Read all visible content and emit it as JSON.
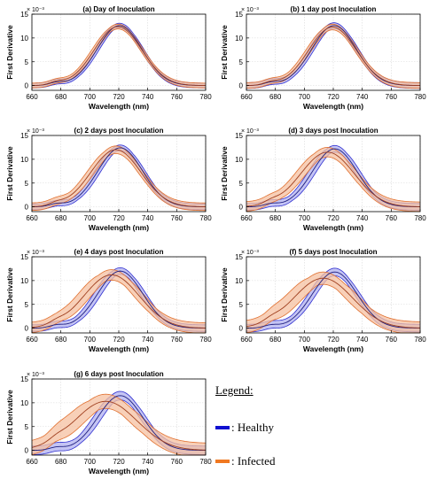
{
  "figure": {
    "legend_title": "Legend:",
    "legend_items": [
      {
        "label": ": Healthy",
        "color": "#1010d0"
      },
      {
        "label": ": Infected",
        "color": "#f07820"
      }
    ]
  },
  "chart_data": [
    {
      "type": "area",
      "title": "(a) Day of Inoculation",
      "xlabel": "Wavelength (nm)",
      "ylabel": "First Derivative",
      "exponent_label": "× 10⁻³",
      "xlim": [
        660,
        780
      ],
      "ylim": [
        -1,
        15
      ],
      "xticks": [
        660,
        680,
        700,
        720,
        740,
        760,
        780
      ],
      "yticks": [
        0,
        5,
        10,
        15
      ],
      "grid": true,
      "series": [
        {
          "name": "Healthy",
          "color": "#3030d0",
          "fill": "#b0b0f0",
          "peak_x": 720.5,
          "peak_y": 12.6,
          "band": 0.5,
          "shift": 1.5
        },
        {
          "name": "Infected",
          "color": "#e07030",
          "fill": "#f5c0a0",
          "peak_x": 719.5,
          "peak_y": 12.4,
          "band": 0.5,
          "shift": 1.5
        }
      ]
    },
    {
      "type": "area",
      "title": "(b) 1 day post Inoculation",
      "xlabel": "Wavelength (nm)",
      "ylabel": "First Derivative",
      "exponent_label": "× 10⁻³",
      "xlim": [
        660,
        780
      ],
      "ylim": [
        -1,
        15
      ],
      "xticks": [
        660,
        680,
        700,
        720,
        740,
        760,
        780
      ],
      "yticks": [
        0,
        5,
        10,
        15
      ],
      "grid": true,
      "series": [
        {
          "name": "Healthy",
          "color": "#3030d0",
          "fill": "#b0b0f0",
          "peak_x": 720.5,
          "peak_y": 12.6,
          "band": 0.6,
          "shift": 1.8
        },
        {
          "name": "Infected",
          "color": "#e07030",
          "fill": "#f5c0a0",
          "peak_x": 719.5,
          "peak_y": 12.3,
          "band": 0.6,
          "shift": 1.8
        }
      ]
    },
    {
      "type": "area",
      "title": "(c) 2 days post Inoculation",
      "xlabel": "Wavelength (nm)",
      "ylabel": "First Derivative",
      "exponent_label": "× 10⁻³",
      "xlim": [
        660,
        780
      ],
      "ylim": [
        -1,
        15
      ],
      "xticks": [
        660,
        680,
        700,
        720,
        740,
        760,
        780
      ],
      "yticks": [
        0,
        5,
        10,
        15
      ],
      "grid": true,
      "series": [
        {
          "name": "Healthy",
          "color": "#3030d0",
          "fill": "#b0b0f0",
          "peak_x": 721,
          "peak_y": 12.4,
          "band": 0.6,
          "shift": 2.0
        },
        {
          "name": "Infected",
          "color": "#e07030",
          "fill": "#f5c0a0",
          "peak_x": 718,
          "peak_y": 12.0,
          "band": 0.8,
          "shift": 2.5
        }
      ]
    },
    {
      "type": "area",
      "title": "(d) 3 days post Inoculation",
      "xlabel": "Wavelength (nm)",
      "ylabel": "First Derivative",
      "exponent_label": "× 10⁻³",
      "xlim": [
        660,
        780
      ],
      "ylim": [
        -1,
        15
      ],
      "xticks": [
        660,
        680,
        700,
        720,
        740,
        760,
        780
      ],
      "yticks": [
        0,
        5,
        10,
        15
      ],
      "grid": true,
      "series": [
        {
          "name": "Healthy",
          "color": "#3030d0",
          "fill": "#b0b0f0",
          "peak_x": 721,
          "peak_y": 12.2,
          "band": 0.7,
          "shift": 2.5
        },
        {
          "name": "Infected",
          "color": "#e07030",
          "fill": "#f5c0a0",
          "peak_x": 716,
          "peak_y": 11.5,
          "band": 1.0,
          "shift": 3.5
        }
      ]
    },
    {
      "type": "area",
      "title": "(e) 4 days post Inoculation",
      "xlabel": "Wavelength (nm)",
      "ylabel": "First Derivative",
      "exponent_label": "× 10⁻³",
      "xlim": [
        660,
        780
      ],
      "ylim": [
        -1,
        15
      ],
      "xticks": [
        660,
        680,
        700,
        720,
        740,
        760,
        780
      ],
      "yticks": [
        0,
        5,
        10,
        15
      ],
      "grid": true,
      "series": [
        {
          "name": "Healthy",
          "color": "#3030d0",
          "fill": "#b0b0f0",
          "peak_x": 721,
          "peak_y": 12.0,
          "band": 0.7,
          "shift": 2.5
        },
        {
          "name": "Infected",
          "color": "#e07030",
          "fill": "#f5c0a0",
          "peak_x": 715,
          "peak_y": 11.2,
          "band": 1.1,
          "shift": 4.5
        }
      ]
    },
    {
      "type": "area",
      "title": "(f) 5 days post Inoculation",
      "xlabel": "Wavelength (nm)",
      "ylabel": "First Derivative",
      "exponent_label": "× 10⁻³",
      "xlim": [
        660,
        780
      ],
      "ylim": [
        -1,
        15
      ],
      "xticks": [
        660,
        680,
        700,
        720,
        740,
        760,
        780
      ],
      "yticks": [
        0,
        5,
        10,
        15
      ],
      "grid": true,
      "series": [
        {
          "name": "Healthy",
          "color": "#3030d0",
          "fill": "#b0b0f0",
          "peak_x": 721,
          "peak_y": 11.8,
          "band": 0.8,
          "shift": 2.5
        },
        {
          "name": "Infected",
          "color": "#e07030",
          "fill": "#f5c0a0",
          "peak_x": 713,
          "peak_y": 10.5,
          "band": 1.3,
          "shift": 6.0
        }
      ]
    },
    {
      "type": "area",
      "title": "(g) 6 days post Inoculation",
      "xlabel": "Wavelength (nm)",
      "ylabel": "First Derivative",
      "exponent_label": "× 10⁻³",
      "xlim": [
        660,
        780
      ],
      "ylim": [
        -1,
        15
      ],
      "xticks": [
        660,
        680,
        700,
        720,
        740,
        760,
        780
      ],
      "yticks": [
        0,
        5,
        10,
        15
      ],
      "grid": true,
      "series": [
        {
          "name": "Healthy",
          "color": "#3030d0",
          "fill": "#b0b0f0",
          "peak_x": 721,
          "peak_y": 11.5,
          "band": 0.9,
          "shift": 2.8
        },
        {
          "name": "Infected",
          "color": "#e07030",
          "fill": "#f5c0a0",
          "peak_x": 711,
          "peak_y": 10.3,
          "band": 1.5,
          "shift": 7.0
        }
      ]
    }
  ]
}
